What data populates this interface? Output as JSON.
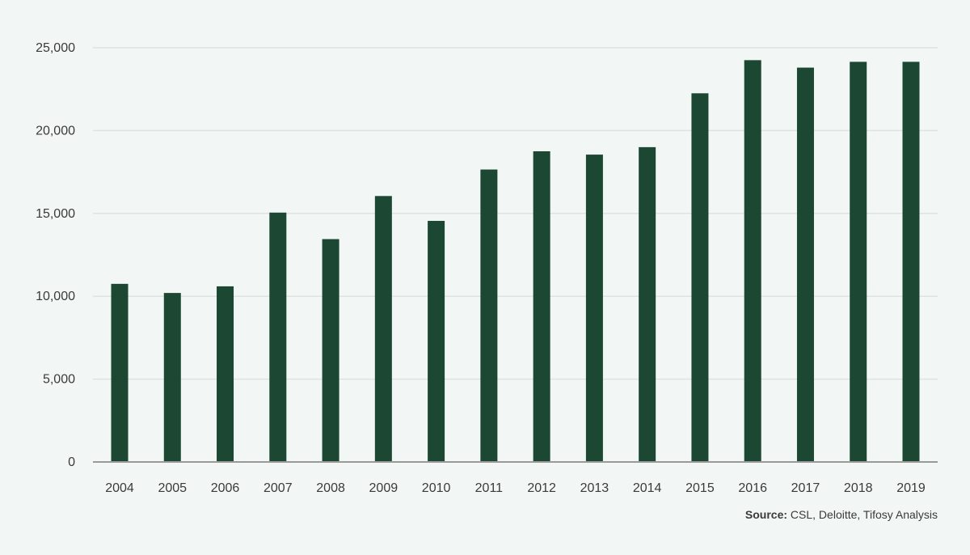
{
  "chart_data": {
    "type": "bar",
    "title": "",
    "xlabel": "",
    "ylabel": "",
    "categories": [
      "2004",
      "2005",
      "2006",
      "2007",
      "2008",
      "2009",
      "2010",
      "2011",
      "2012",
      "2013",
      "2014",
      "2015",
      "2016",
      "2017",
      "2018",
      "2019"
    ],
    "values": [
      10750,
      10200,
      10600,
      15050,
      13450,
      16050,
      14550,
      17650,
      18750,
      18550,
      19000,
      22250,
      24250,
      23800,
      24150,
      24150
    ],
    "ylim": [
      0,
      25000
    ],
    "yticks": [
      0,
      5000,
      10000,
      15000,
      20000,
      25000
    ],
    "ytick_labels": [
      "0",
      "5,000",
      "10,000",
      "15,000",
      "20,000",
      "25,000"
    ],
    "grid": true,
    "legend": "none",
    "bar_color": "#1c4733",
    "grid_color": "#dde3e0",
    "axis_color": "#9a9a9a"
  },
  "footer": {
    "source_label": "Source:",
    "source_text": " CSL, Deloitte, Tifosy Analysis"
  }
}
